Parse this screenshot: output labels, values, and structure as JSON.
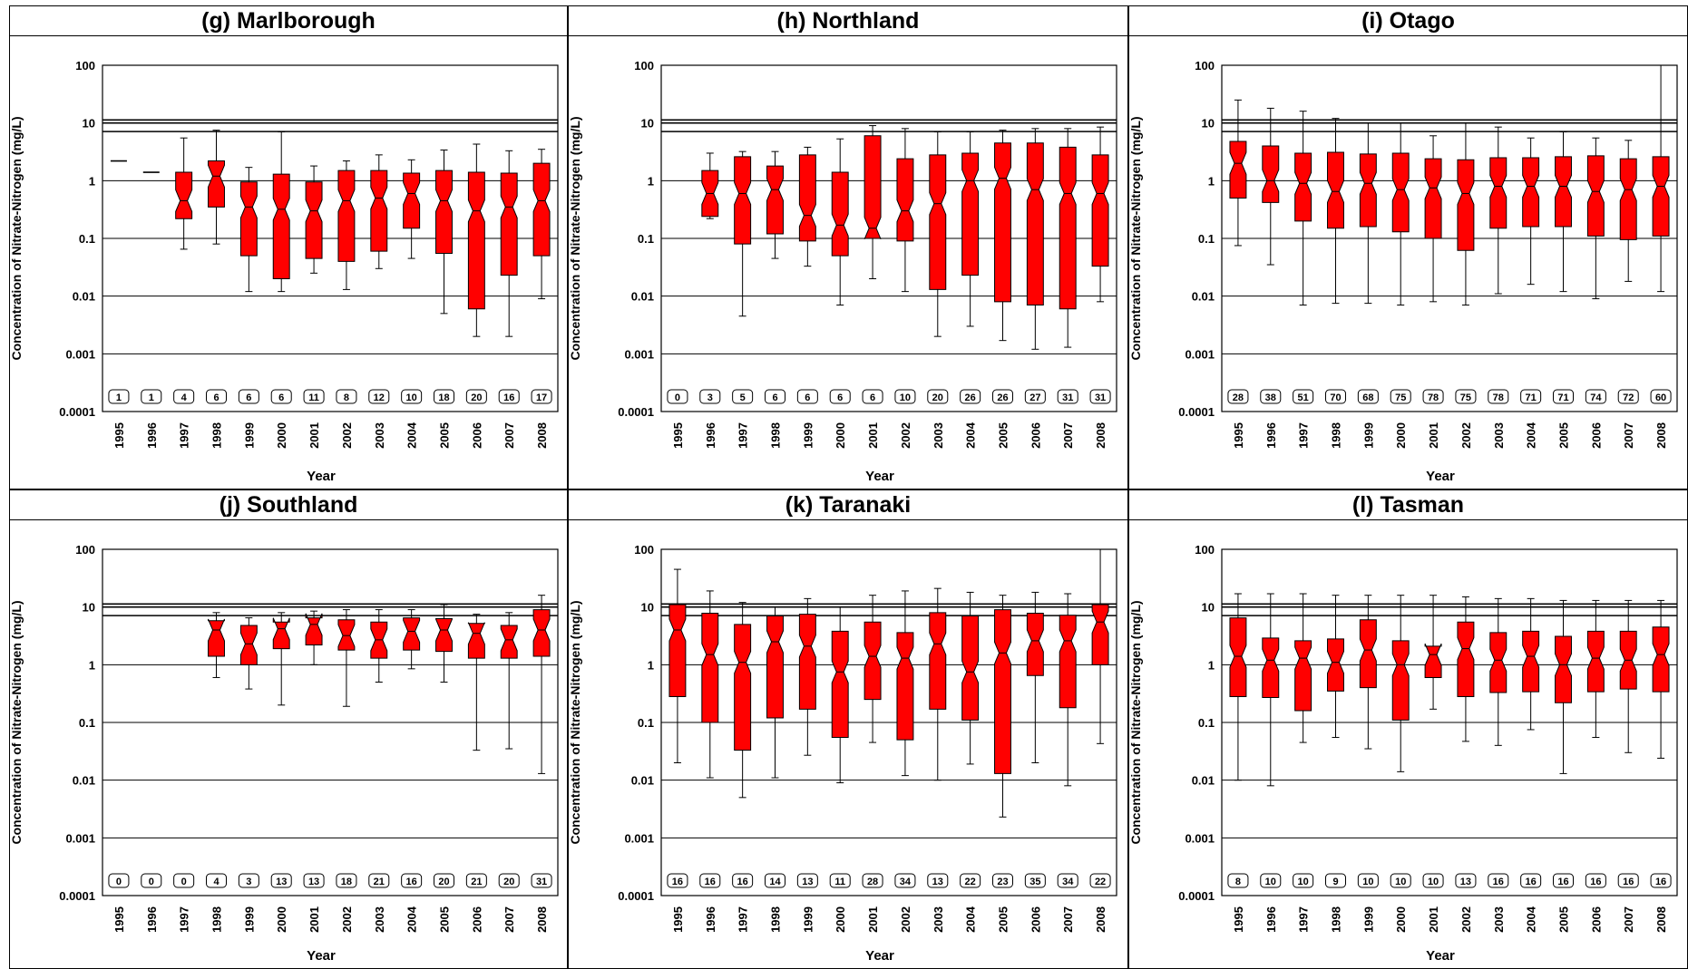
{
  "common": {
    "ylabel": "Concentration of Nitrate-Nitrogen (mg/L)",
    "xlabel": "Year",
    "ytick_labels": [
      "100",
      "10",
      "1",
      "0.1",
      "0.01",
      "0.001",
      "0.0001"
    ],
    "years": [
      "1995",
      "1996",
      "1997",
      "1998",
      "1999",
      "2000",
      "2001",
      "2002",
      "2003",
      "2004",
      "2005",
      "2006",
      "2007",
      "2008"
    ],
    "box_color": "#ff0000",
    "reference_lines_mg_per_l": [
      7.1,
      10,
      11.3
    ]
  },
  "chart_data": [
    {
      "type": "box",
      "title": "(g) Marlborough",
      "xlabel": "Year",
      "ylabel": "Concentration of Nitrate-Nitrogen (mg/L)",
      "yscale": "log",
      "ylim": [
        0.0001,
        100
      ],
      "categories": [
        "1995",
        "1996",
        "1997",
        "1998",
        "1999",
        "2000",
        "2001",
        "2002",
        "2003",
        "2004",
        "2005",
        "2006",
        "2007",
        "2008"
      ],
      "counts": [
        "1",
        "1",
        "4",
        "6",
        "6",
        "6",
        "11",
        "8",
        "12",
        "10",
        "18",
        "20",
        "16",
        "17"
      ],
      "boxes": [
        {
          "min": null,
          "q1": null,
          "median": 2.2,
          "q3": null,
          "max": null
        },
        {
          "min": null,
          "q1": null,
          "median": 1.4,
          "q3": null,
          "max": null
        },
        {
          "min": 0.065,
          "q1": 0.22,
          "median": 0.45,
          "q3": 1.4,
          "max": 5.5
        },
        {
          "min": 0.08,
          "q1": 0.35,
          "median": 1.2,
          "q3": 2.2,
          "max": 7.5
        },
        {
          "min": 0.012,
          "q1": 0.05,
          "median": 0.35,
          "q3": 0.95,
          "max": 1.7
        },
        {
          "min": 0.012,
          "q1": 0.02,
          "median": 0.32,
          "q3": 1.3,
          "max": 7.0
        },
        {
          "min": 0.025,
          "q1": 0.045,
          "median": 0.3,
          "q3": 0.95,
          "max": 1.8
        },
        {
          "min": 0.013,
          "q1": 0.04,
          "median": 0.45,
          "q3": 1.5,
          "max": 2.2
        },
        {
          "min": 0.03,
          "q1": 0.06,
          "median": 0.5,
          "q3": 1.5,
          "max": 2.8
        },
        {
          "min": 0.045,
          "q1": 0.15,
          "median": 0.6,
          "q3": 1.35,
          "max": 2.3
        },
        {
          "min": 0.005,
          "q1": 0.055,
          "median": 0.45,
          "q3": 1.5,
          "max": 3.4
        },
        {
          "min": 0.002,
          "q1": 0.006,
          "median": 0.3,
          "q3": 1.4,
          "max": 4.3
        },
        {
          "min": 0.002,
          "q1": 0.023,
          "median": 0.35,
          "q3": 1.35,
          "max": 3.3
        },
        {
          "min": 0.009,
          "q1": 0.05,
          "median": 0.45,
          "q3": 2.0,
          "max": 3.5
        }
      ]
    },
    {
      "type": "box",
      "title": "(h) Northland",
      "xlabel": "Year",
      "ylabel": "Concentration of Nitrate-Nitrogen (mg/L)",
      "yscale": "log",
      "ylim": [
        0.0001,
        100
      ],
      "categories": [
        "1995",
        "1996",
        "1997",
        "1998",
        "1999",
        "2000",
        "2001",
        "2002",
        "2003",
        "2004",
        "2005",
        "2006",
        "2007",
        "2008"
      ],
      "counts": [
        "0",
        "3",
        "5",
        "6",
        "6",
        "6",
        "6",
        "10",
        "20",
        "26",
        "26",
        "27",
        "31",
        "31"
      ],
      "boxes": [
        null,
        {
          "min": 0.22,
          "q1": 0.24,
          "median": 0.6,
          "q3": 1.5,
          "max": 3.0
        },
        {
          "min": 0.0045,
          "q1": 0.08,
          "median": 0.6,
          "q3": 2.6,
          "max": 3.2
        },
        {
          "min": 0.045,
          "q1": 0.12,
          "median": 0.7,
          "q3": 1.8,
          "max": 3.2
        },
        {
          "min": 0.033,
          "q1": 0.09,
          "median": 0.25,
          "q3": 2.8,
          "max": 3.8
        },
        {
          "min": 0.007,
          "q1": 0.05,
          "median": 0.17,
          "q3": 1.4,
          "max": 5.3
        },
        {
          "min": 0.02,
          "q1": 0.1,
          "median": 0.15,
          "q3": 6.0,
          "max": 9.0
        },
        {
          "min": 0.012,
          "q1": 0.09,
          "median": 0.3,
          "q3": 2.4,
          "max": 8.0
        },
        {
          "min": 0.002,
          "q1": 0.013,
          "median": 0.4,
          "q3": 2.8,
          "max": 7.0
        },
        {
          "min": 0.003,
          "q1": 0.023,
          "median": 1.0,
          "q3": 3.0,
          "max": 7.0
        },
        {
          "min": 0.0017,
          "q1": 0.008,
          "median": 1.1,
          "q3": 4.5,
          "max": 7.5
        },
        {
          "min": 0.0012,
          "q1": 0.007,
          "median": 0.7,
          "q3": 4.5,
          "max": 8.0
        },
        {
          "min": 0.0013,
          "q1": 0.006,
          "median": 0.6,
          "q3": 3.8,
          "max": 8.0
        },
        {
          "min": 0.008,
          "q1": 0.033,
          "median": 0.6,
          "q3": 2.8,
          "max": 8.5
        }
      ]
    },
    {
      "type": "box",
      "title": "(i) Otago",
      "xlabel": "Year",
      "ylabel": "Concentration of Nitrate-Nitrogen (mg/L)",
      "yscale": "log",
      "ylim": [
        0.0001,
        100
      ],
      "categories": [
        "1995",
        "1996",
        "1997",
        "1998",
        "1999",
        "2000",
        "2001",
        "2002",
        "2003",
        "2004",
        "2005",
        "2006",
        "2007",
        "2008"
      ],
      "counts": [
        "28",
        "38",
        "51",
        "70",
        "68",
        "75",
        "78",
        "75",
        "78",
        "71",
        "71",
        "74",
        "72",
        "60"
      ],
      "boxes": [
        {
          "min": 0.075,
          "q1": 0.5,
          "median": 2.0,
          "q3": 4.8,
          "max": 25
        },
        {
          "min": 0.035,
          "q1": 0.42,
          "median": 1.0,
          "q3": 4.0,
          "max": 18
        },
        {
          "min": 0.007,
          "q1": 0.2,
          "median": 0.9,
          "q3": 3.0,
          "max": 16
        },
        {
          "min": 0.0075,
          "q1": 0.15,
          "median": 0.65,
          "q3": 3.1,
          "max": 12
        },
        {
          "min": 0.0075,
          "q1": 0.16,
          "median": 0.9,
          "q3": 2.9,
          "max": 10
        },
        {
          "min": 0.007,
          "q1": 0.13,
          "median": 0.7,
          "q3": 3.0,
          "max": 10
        },
        {
          "min": 0.008,
          "q1": 0.1,
          "median": 0.75,
          "q3": 2.4,
          "max": 6.0
        },
        {
          "min": 0.007,
          "q1": 0.062,
          "median": 0.6,
          "q3": 2.3,
          "max": 10
        },
        {
          "min": 0.011,
          "q1": 0.15,
          "median": 0.8,
          "q3": 2.5,
          "max": 8.5
        },
        {
          "min": 0.016,
          "q1": 0.16,
          "median": 0.8,
          "q3": 2.5,
          "max": 5.5
        },
        {
          "min": 0.012,
          "q1": 0.16,
          "median": 0.8,
          "q3": 2.6,
          "max": 7.0
        },
        {
          "min": 0.009,
          "q1": 0.11,
          "median": 0.65,
          "q3": 2.7,
          "max": 5.5
        },
        {
          "min": 0.018,
          "q1": 0.095,
          "median": 0.7,
          "q3": 2.4,
          "max": 5.0
        },
        {
          "min": 0.012,
          "q1": 0.11,
          "median": 0.8,
          "q3": 2.6,
          "max": 100
        }
      ]
    },
    {
      "type": "box",
      "title": "(j) Southland",
      "xlabel": "Year",
      "ylabel": "Concentration of Nitrate-Nitrogen (mg/L)",
      "yscale": "log",
      "ylim": [
        0.0001,
        100
      ],
      "categories": [
        "1995",
        "1996",
        "1997",
        "1998",
        "1999",
        "2000",
        "2001",
        "2002",
        "2003",
        "2004",
        "2005",
        "2006",
        "2007",
        "2008"
      ],
      "counts": [
        "0",
        "0",
        "0",
        "4",
        "3",
        "13",
        "13",
        "18",
        "21",
        "16",
        "20",
        "21",
        "20",
        "31"
      ],
      "boxes": [
        null,
        null,
        null,
        {
          "min": 0.6,
          "q1": 1.4,
          "median": 4.0,
          "q3": 5.8,
          "max": 8.0
        },
        {
          "min": 0.38,
          "q1": 1.0,
          "median": 2.3,
          "q3": 4.8,
          "max": 6.5
        },
        {
          "min": 0.2,
          "q1": 1.9,
          "median": 4.2,
          "q3": 5.5,
          "max": 8.0
        },
        {
          "min": 1.0,
          "q1": 2.2,
          "median": 5.0,
          "q3": 6.5,
          "max": 8.5
        },
        {
          "min": 0.19,
          "q1": 1.8,
          "median": 3.2,
          "q3": 6.0,
          "max": 9.0
        },
        {
          "min": 0.5,
          "q1": 1.3,
          "median": 2.7,
          "q3": 5.5,
          "max": 9.0
        },
        {
          "min": 0.85,
          "q1": 1.8,
          "median": 3.8,
          "q3": 6.5,
          "max": 9.0
        },
        {
          "min": 0.5,
          "q1": 1.7,
          "median": 4.0,
          "q3": 6.3,
          "max": 11
        },
        {
          "min": 0.033,
          "q1": 1.3,
          "median": 3.5,
          "q3": 5.2,
          "max": 7.5
        },
        {
          "min": 0.035,
          "q1": 1.3,
          "median": 2.7,
          "q3": 4.8,
          "max": 8.0
        },
        {
          "min": 0.013,
          "q1": 1.4,
          "median": 4.0,
          "q3": 9.0,
          "max": 16
        }
      ]
    },
    {
      "type": "box",
      "title": "(k) Taranaki",
      "xlabel": "Year",
      "ylabel": "Concentration of Nitrate-Nitrogen (mg/L)",
      "yscale": "log",
      "ylim": [
        0.0001,
        100
      ],
      "categories": [
        "1995",
        "1996",
        "1997",
        "1998",
        "1999",
        "2000",
        "2001",
        "2002",
        "2003",
        "2004",
        "2005",
        "2006",
        "2007",
        "2008"
      ],
      "counts": [
        "16",
        "16",
        "16",
        "14",
        "13",
        "11",
        "28",
        "34",
        "13",
        "22",
        "23",
        "35",
        "34",
        "22"
      ],
      "boxes": [
        {
          "min": 0.02,
          "q1": 0.28,
          "median": 4.0,
          "q3": 11,
          "max": 45
        },
        {
          "min": 0.011,
          "q1": 0.1,
          "median": 1.5,
          "q3": 7.8,
          "max": 19
        },
        {
          "min": 0.005,
          "q1": 0.033,
          "median": 1.1,
          "q3": 5.0,
          "max": 12
        },
        {
          "min": 0.011,
          "q1": 0.12,
          "median": 2.5,
          "q3": 7.0,
          "max": 10
        },
        {
          "min": 0.027,
          "q1": 0.17,
          "median": 2.1,
          "q3": 7.5,
          "max": 14
        },
        {
          "min": 0.009,
          "q1": 0.055,
          "median": 0.75,
          "q3": 3.8,
          "max": 10
        },
        {
          "min": 0.045,
          "q1": 0.25,
          "median": 1.4,
          "q3": 5.5,
          "max": 16
        },
        {
          "min": 0.012,
          "q1": 0.05,
          "median": 1.3,
          "q3": 3.6,
          "max": 19
        },
        {
          "min": 0.01,
          "q1": 0.17,
          "median": 2.3,
          "q3": 8.0,
          "max": 21
        },
        {
          "min": 0.019,
          "q1": 0.11,
          "median": 0.75,
          "q3": 7.0,
          "max": 18
        },
        {
          "min": 0.0023,
          "q1": 0.013,
          "median": 1.6,
          "q3": 9.0,
          "max": 16
        },
        {
          "min": 0.02,
          "q1": 0.65,
          "median": 2.6,
          "q3": 7.8,
          "max": 18
        },
        {
          "min": 0.008,
          "q1": 0.18,
          "median": 2.6,
          "q3": 7.2,
          "max": 17
        },
        {
          "min": 0.043,
          "q1": 1.0,
          "median": 5.5,
          "q3": 11,
          "max": 100
        }
      ]
    },
    {
      "type": "box",
      "title": "(l) Tasman",
      "xlabel": "Year",
      "ylabel": "Concentration of Nitrate-Nitrogen (mg/L)",
      "yscale": "log",
      "ylim": [
        0.0001,
        100
      ],
      "categories": [
        "1995",
        "1996",
        "1997",
        "1998",
        "1999",
        "2000",
        "2001",
        "2002",
        "2003",
        "2004",
        "2005",
        "2006",
        "2007",
        "2008"
      ],
      "counts": [
        "8",
        "10",
        "10",
        "9",
        "10",
        "10",
        "10",
        "13",
        "16",
        "16",
        "16",
        "16",
        "16",
        "16"
      ],
      "boxes": [
        {
          "min": 0.01,
          "q1": 0.28,
          "median": 1.4,
          "q3": 6.5,
          "max": 17
        },
        {
          "min": 0.008,
          "q1": 0.27,
          "median": 1.2,
          "q3": 2.9,
          "max": 17
        },
        {
          "min": 0.045,
          "q1": 0.16,
          "median": 1.3,
          "q3": 2.6,
          "max": 17
        },
        {
          "min": 0.055,
          "q1": 0.35,
          "median": 1.1,
          "q3": 2.8,
          "max": 16
        },
        {
          "min": 0.035,
          "q1": 0.4,
          "median": 1.8,
          "q3": 6.0,
          "max": 16
        },
        {
          "min": 0.014,
          "q1": 0.11,
          "median": 1.0,
          "q3": 2.6,
          "max": 16
        },
        {
          "min": 0.17,
          "q1": 0.6,
          "median": 1.5,
          "q3": 2.1,
          "max": 16
        },
        {
          "min": 0.047,
          "q1": 0.28,
          "median": 1.9,
          "q3": 5.5,
          "max": 15
        },
        {
          "min": 0.04,
          "q1": 0.33,
          "median": 1.2,
          "q3": 3.6,
          "max": 14
        },
        {
          "min": 0.075,
          "q1": 0.34,
          "median": 1.4,
          "q3": 3.8,
          "max": 14
        },
        {
          "min": 0.013,
          "q1": 0.22,
          "median": 1.0,
          "q3": 3.1,
          "max": 13
        },
        {
          "min": 0.055,
          "q1": 0.34,
          "median": 1.3,
          "q3": 3.8,
          "max": 13
        },
        {
          "min": 0.03,
          "q1": 0.38,
          "median": 1.2,
          "q3": 3.8,
          "max": 13
        },
        {
          "min": 0.024,
          "q1": 0.34,
          "median": 1.5,
          "q3": 4.5,
          "max": 13
        }
      ]
    }
  ]
}
